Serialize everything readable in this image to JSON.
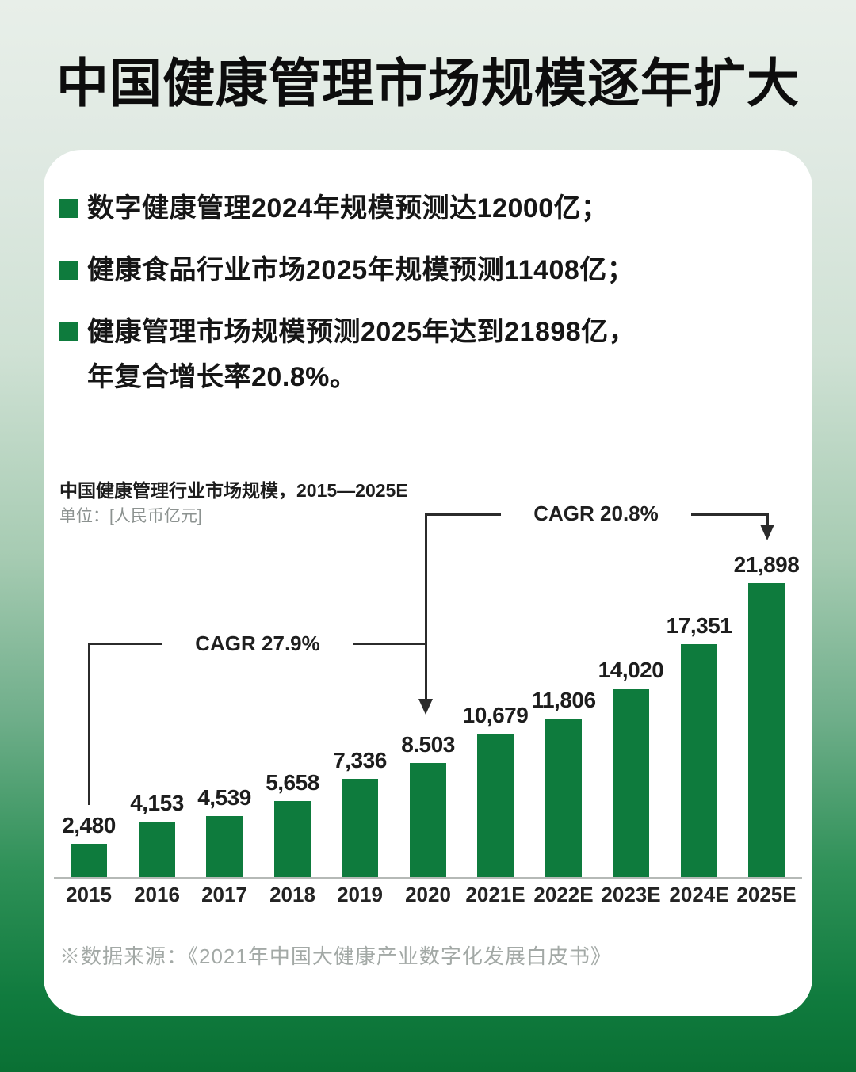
{
  "page": {
    "title": "中国健康管理市场规模逐年扩大"
  },
  "bullets": [
    {
      "text": "数字健康管理2024年规模预测达12000亿；"
    },
    {
      "text": "健康食品行业市场2025年规模预测11408亿；"
    },
    {
      "line1": "健康管理市场规模预测2025年达到21898亿，",
      "line2": "年复合增长率20.8%。"
    }
  ],
  "chart": {
    "title": "中国健康管理行业市场规模，2015—2025E",
    "unit": "单位：[人民币亿元]",
    "cagr_left_label": "CAGR 27.9%",
    "cagr_right_label": "CAGR 20.8%"
  },
  "chart_data": {
    "type": "bar",
    "title": "中国健康管理行业市场规模，2015—2025E",
    "ylabel": "人民币亿元",
    "categories": [
      "2015",
      "2016",
      "2017",
      "2018",
      "2019",
      "2020",
      "2021E",
      "2022E",
      "2023E",
      "2024E",
      "2025E"
    ],
    "values": [
      2480,
      4153,
      4539,
      5658,
      7336,
      8503,
      10679,
      11806,
      14020,
      17351,
      21898
    ],
    "value_labels": [
      "2,480",
      "4,153",
      "4,539",
      "5,658",
      "7,336",
      "8.503",
      "10,679",
      "11,806",
      "14,020",
      "17,351",
      "21,898"
    ],
    "annotations": [
      {
        "label": "CAGR 27.9%",
        "from": "2015",
        "to": "2020"
      },
      {
        "label": "CAGR 20.8%",
        "from": "2020",
        "to": "2025E"
      }
    ],
    "ylim": [
      0,
      21898
    ],
    "grid": false,
    "legend": false,
    "bar_color": "#0E7B3D"
  },
  "source": "※数据来源：《2021年中国大健康产业数字化发展白皮书》",
  "colors": {
    "bar_green": "#0E7B3D",
    "bullet_green": "#0E7B3D",
    "annotation_line": "#2B2B2B",
    "axis_gray": "#B5B9B6",
    "bg_top": "#E8EFE9",
    "bg_bottom": "#0A7034"
  }
}
